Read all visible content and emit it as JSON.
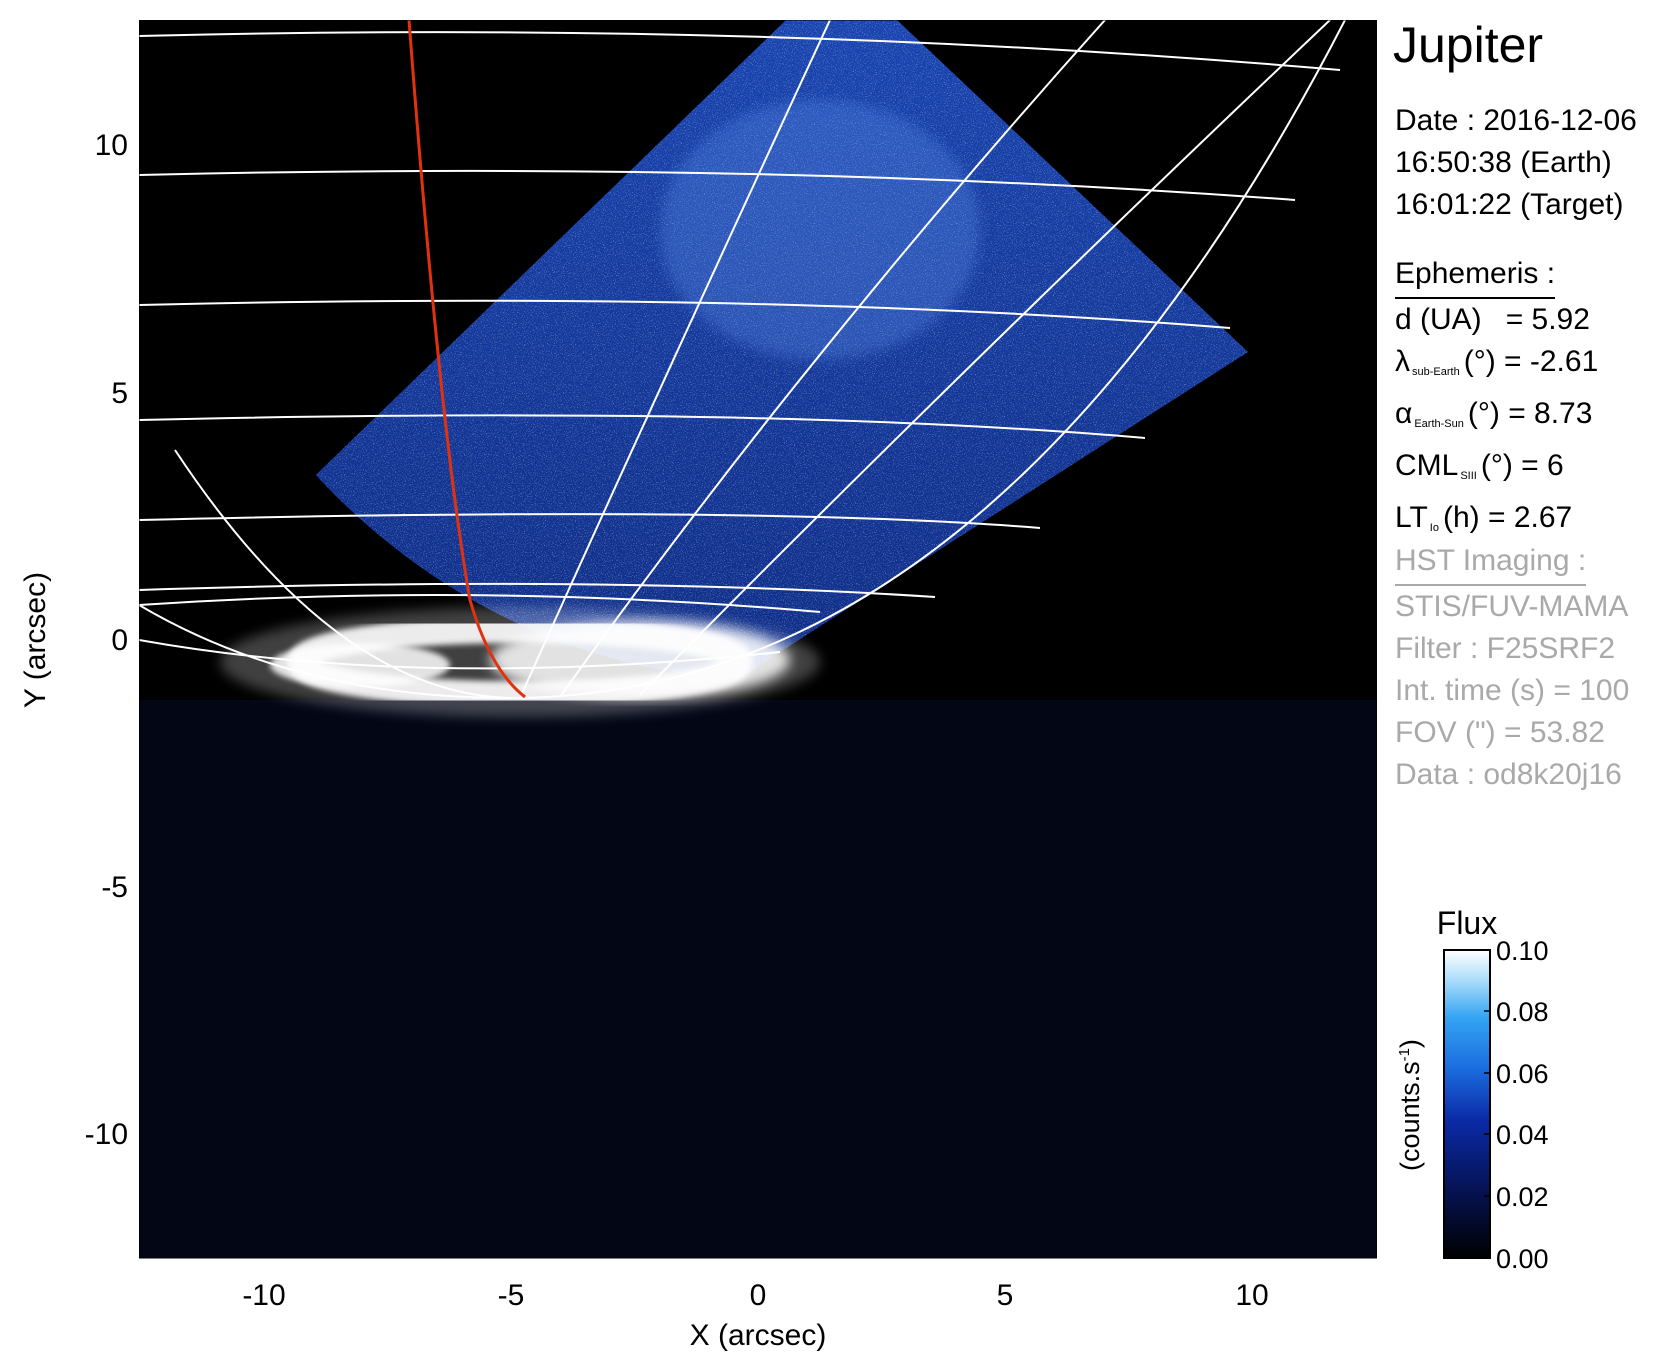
{
  "header": {
    "title": "Jupiter"
  },
  "observation": {
    "date": "Date : 2016-12-06",
    "time_earth": "16:50:38 (Earth)",
    "time_target": "16:01:22 (Target)"
  },
  "ephemeris": {
    "heading": "Ephemeris :",
    "d_label": "d (UA)",
    "d_value": "= 5.92",
    "lat_symbol": "λ",
    "lat_sub": "sub-Earth",
    "lat_value": "(°) = -2.61",
    "alpha_symbol": "α",
    "alpha_sub": "Earth-Sun",
    "alpha_value": "(°) = 8.73",
    "cml_symbol": "CML",
    "cml_sub": "SIII",
    "cml_value": "(°) = 6",
    "lt_symbol": "LT",
    "lt_sub": "Io",
    "lt_value": "(h) = 2.67"
  },
  "instrument": {
    "heading": "HST Imaging :",
    "detector": "STIS/FUV-MAMA",
    "filter": "Filter : F25SRF2",
    "int_time": "Int. time (s) = 100",
    "fov": "FOV (\") = 53.82",
    "dataset": "Data : od8k20j16"
  },
  "axes": {
    "xlabel": "X (arcsec)",
    "ylabel": "Y (arcsec)",
    "x_ticks": [
      "-10",
      "-5",
      "0",
      "5",
      "10"
    ],
    "y_ticks": [
      "10",
      "5",
      "0",
      "-5",
      "-10"
    ],
    "xlim": [
      -12.5,
      12.5
    ],
    "ylim": [
      -12.5,
      12.5
    ]
  },
  "colorbar": {
    "title": "Flux",
    "unit_label": "(counts.s",
    "unit_exp": "-1",
    "unit_close": ")",
    "ticks": [
      "0.10",
      "0.08",
      "0.06",
      "0.04",
      "0.02",
      "0.00"
    ],
    "range": [
      0.0,
      0.1
    ]
  },
  "colors": {
    "sky": "#000000",
    "disk_low": "#0a1f6e",
    "disk_high": "#2f6fe0",
    "aurora": "#ffffff",
    "grid": "#ffffff",
    "io_footprint_track": "#e0320f",
    "instrument_text": "#a9a9a9"
  }
}
